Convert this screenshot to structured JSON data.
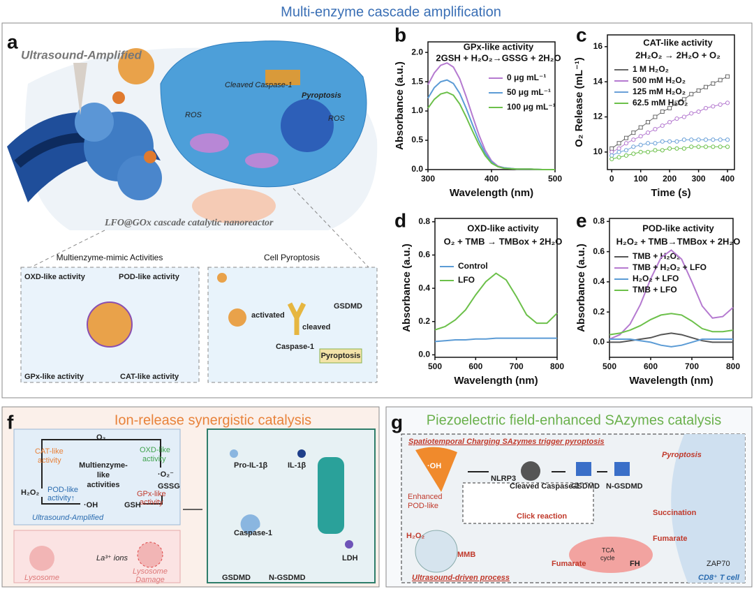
{
  "title": "Multi-enzyme cascade amplification",
  "panel_a": {
    "label": "a",
    "ultrasound": "Ultrasound-Amplified",
    "cleaved_caspase": "Cleaved Caspase-1",
    "pyroptosis": "Pyroptosis",
    "ros": "ROS",
    "nanoreactor": "LFO@GOx cascade catalytic nanoreactor",
    "activities_title": "Multienzyme-mimic Activities",
    "oxd": "OXD-like activity",
    "pod": "POD-like activity",
    "gpx": "GPx-like activity",
    "cat": "CAT-like activity",
    "cell_title": "Cell Pyroptosis",
    "activated": "activated",
    "cleaved": "cleaved",
    "gsdmd": "GSDMD",
    "caspase": "Caspase-1",
    "pyroptosis_box": "Pyroptosis"
  },
  "chart_data": [
    {
      "label": "b",
      "type": "line",
      "title": "GPx-like activity",
      "subtitle": "2GSH + H₂O₂→GSSG + 2H₂O",
      "x_label": "Wavelength (nm)",
      "y_label": "Absorbance (a.u.)",
      "x": [
        300,
        310,
        320,
        330,
        340,
        350,
        360,
        370,
        380,
        390,
        400,
        410,
        420,
        440,
        460,
        480,
        500
      ],
      "series": [
        {
          "name": "0 μg mL⁻¹",
          "color": "#b57ad0",
          "values": [
            1.45,
            1.65,
            1.78,
            1.82,
            1.75,
            1.55,
            1.25,
            0.92,
            0.6,
            0.33,
            0.15,
            0.06,
            0.03,
            0.01,
            0.01,
            0.0,
            0.0
          ]
        },
        {
          "name": "50 μg mL⁻¹",
          "color": "#5b9bd5",
          "values": [
            1.22,
            1.4,
            1.5,
            1.53,
            1.47,
            1.3,
            1.05,
            0.77,
            0.5,
            0.28,
            0.13,
            0.05,
            0.03,
            0.01,
            0.01,
            0.0,
            0.0
          ]
        },
        {
          "name": "100 μg mL⁻¹",
          "color": "#6cc04a",
          "values": [
            1.05,
            1.2,
            1.29,
            1.32,
            1.27,
            1.12,
            0.9,
            0.66,
            0.43,
            0.24,
            0.11,
            0.05,
            0.02,
            0.01,
            0.01,
            0.0,
            0.0
          ]
        }
      ],
      "xlim": [
        300,
        500
      ],
      "ylim": [
        0,
        2.18
      ],
      "xticks": [
        300,
        400,
        500
      ],
      "yticks": [
        {
          "value": 0,
          "label": "0.0"
        },
        {
          "value": 0.5,
          "label": "0.5"
        },
        {
          "value": 1,
          "label": "1.0"
        },
        {
          "value": 1.5,
          "label": "1.5"
        },
        {
          "value": 2,
          "label": "2.0"
        }
      ]
    },
    {
      "label": "c",
      "type": "line",
      "markers": true,
      "title": "CAT-like activity",
      "subtitle": "2H₂O₂ → 2H₂O + O₂",
      "x_label": "Time (s)",
      "y_label": "O₂ Release (mL⁻¹)",
      "x": [
        0,
        25,
        50,
        75,
        100,
        125,
        150,
        175,
        200,
        225,
        250,
        275,
        300,
        325,
        350,
        375,
        400
      ],
      "series": [
        {
          "name": "1 M H₂O₂",
          "color": "#666666",
          "values": [
            10.2,
            10.5,
            10.8,
            11.1,
            11.4,
            11.7,
            12.0,
            12.3,
            12.5,
            12.8,
            13.0,
            13.3,
            13.5,
            13.7,
            13.9,
            14.1,
            14.3
          ]
        },
        {
          "name": "500 mM H₂O₂",
          "color": "#b57ad0",
          "values": [
            10.0,
            10.2,
            10.5,
            10.7,
            10.9,
            11.1,
            11.3,
            11.5,
            11.7,
            11.9,
            12.0,
            12.2,
            12.3,
            12.5,
            12.6,
            12.7,
            12.8
          ]
        },
        {
          "name": "125 mM H₂O₂",
          "color": "#6aa0d8",
          "values": [
            9.8,
            10.0,
            10.1,
            10.3,
            10.4,
            10.5,
            10.5,
            10.6,
            10.6,
            10.6,
            10.7,
            10.7,
            10.7,
            10.7,
            10.7,
            10.7,
            10.7
          ]
        },
        {
          "name": "62.5 mM H₂O₂",
          "color": "#6cc04a",
          "values": [
            9.6,
            9.7,
            9.8,
            9.9,
            10.0,
            10.0,
            10.1,
            10.1,
            10.2,
            10.2,
            10.2,
            10.3,
            10.3,
            10.3,
            10.3,
            10.3,
            10.3
          ]
        }
      ],
      "xlim": [
        -15,
        424
      ],
      "ylim": [
        9.0,
        16.67
      ],
      "xticks": [
        0,
        100,
        200,
        300,
        400
      ],
      "yticks": [
        10,
        12,
        14,
        16
      ]
    },
    {
      "label": "d",
      "type": "line",
      "title": "OXD-like activity",
      "subtitle": "O₂ + TMB → TMBox + 2H₂O",
      "x_label": "Wavelength (nm)",
      "y_label": "Absorbance (a.u.)",
      "x": [
        500,
        525,
        550,
        575,
        600,
        625,
        650,
        675,
        700,
        725,
        750,
        775,
        800
      ],
      "series": [
        {
          "name": "Control",
          "color": "#5b9bd5",
          "values": [
            0.08,
            0.085,
            0.09,
            0.09,
            0.095,
            0.095,
            0.1,
            0.1,
            0.1,
            0.1,
            0.1,
            0.1,
            0.1
          ]
        },
        {
          "name": "LFO",
          "color": "#6cc04a",
          "values": [
            0.15,
            0.17,
            0.21,
            0.27,
            0.36,
            0.44,
            0.49,
            0.45,
            0.35,
            0.24,
            0.19,
            0.19,
            0.25
          ]
        }
      ],
      "xlim": [
        500,
        800
      ],
      "ylim": [
        -0.015,
        0.82
      ],
      "xticks": [
        500,
        600,
        700,
        800
      ],
      "yticks": [
        {
          "value": 0,
          "label": "0.0"
        },
        {
          "value": 0.2,
          "label": "0.2"
        },
        {
          "value": 0.4,
          "label": "0.4"
        },
        {
          "value": 0.6,
          "label": "0.6"
        },
        {
          "value": 0.8,
          "label": "0.8"
        }
      ]
    },
    {
      "label": "e",
      "type": "line",
      "title": "POD-like activity",
      "subtitle": "H₂O₂ + TMB→TMBox + 2H₂O",
      "x_label": "Wavelength (nm)",
      "y_label": "Absorbance (a.u.)",
      "x": [
        500,
        525,
        550,
        575,
        600,
        625,
        650,
        675,
        700,
        725,
        750,
        775,
        800
      ],
      "series": [
        {
          "name": "TMB + H₂O₂",
          "color": "#555555",
          "values": [
            0.0,
            0.0,
            0.01,
            0.02,
            0.03,
            0.05,
            0.06,
            0.05,
            0.03,
            0.01,
            0.0,
            0.0,
            0.0
          ]
        },
        {
          "name": "TMB + H₂O₂ + LFO",
          "color": "#b57ad0",
          "values": [
            0.02,
            0.05,
            0.12,
            0.25,
            0.42,
            0.56,
            0.61,
            0.55,
            0.4,
            0.24,
            0.16,
            0.17,
            0.23
          ]
        },
        {
          "name": "H₂O₂ + LFO",
          "color": "#5b9bd5",
          "values": [
            0.02,
            0.02,
            0.02,
            0.01,
            0.0,
            -0.02,
            -0.03,
            -0.02,
            0.0,
            0.02,
            0.02,
            0.02,
            0.02
          ]
        },
        {
          "name": "TMB + LFO",
          "color": "#6cc04a",
          "values": [
            0.05,
            0.06,
            0.08,
            0.11,
            0.15,
            0.18,
            0.19,
            0.18,
            0.14,
            0.09,
            0.07,
            0.07,
            0.08
          ]
        }
      ],
      "xlim": [
        500,
        800
      ],
      "ylim": [
        -0.1,
        0.82
      ],
      "xticks": [
        500,
        600,
        700,
        800
      ],
      "yticks": [
        {
          "value": 0,
          "label": "0.0"
        },
        {
          "value": 0.2,
          "label": "0.2"
        },
        {
          "value": 0.4,
          "label": "0.4"
        },
        {
          "value": 0.6,
          "label": "0.6"
        },
        {
          "value": 0.8,
          "label": "0.8"
        }
      ]
    }
  ],
  "panel_f": {
    "label": "f",
    "title": "Ion-release synergistic catalysis",
    "cat": [
      "CAT-like",
      "activity"
    ],
    "o2": "O₂",
    "oxd": [
      "OXD-like",
      "activity"
    ],
    "center": [
      "Multienzyme-",
      "like",
      "activities"
    ],
    "superoxide": "·O₂⁻",
    "h2o2": "H₂O₂",
    "pod": [
      "POD-like",
      "activity↑"
    ],
    "gpx": [
      "GPx-like",
      "activity"
    ],
    "gssg": "GSSG",
    "oh": "·OH",
    "gsh": "GSH",
    "ultrasound": "Ultrasound-Amplified",
    "lysosome": "Lysosome",
    "ions": "La³⁺ ions",
    "damage": [
      "Lysosome",
      "Damage"
    ],
    "pro_il": "Pro-IL-1β",
    "il": "IL-1β",
    "caspase": "Caspase-1",
    "ldh": "LDH",
    "gsdmd": "GSDMD",
    "n_gsdmd": "N-GSDMD"
  },
  "panel_g": {
    "label": "g",
    "title": "Piezoelectric field-enhanced SAzymes catalysis",
    "banner": "Spatiotemporal Charging SAzymes trigger pyroptosis",
    "oh": "·OH",
    "enhanced": [
      "Enhanced",
      "POD-like"
    ],
    "nlrp3": "NLRP3",
    "cleaved": "Cleaved Caspase-1",
    "gsdmd": "GSDMD",
    "n_gsdmd": "N-GSDMD",
    "pyroptosis": "Pyroptosis",
    "click": "Click reaction",
    "succination": "Succination",
    "fumarate": "Fumarate",
    "h2o2": "H₂O₂",
    "mmb": "MMB",
    "tca": [
      "TCA",
      "cycle"
    ],
    "fh": "FH",
    "zap70": "ZAP70",
    "process": "Ultrasound-driven process",
    "tcell": "CD8⁺ T cell"
  }
}
